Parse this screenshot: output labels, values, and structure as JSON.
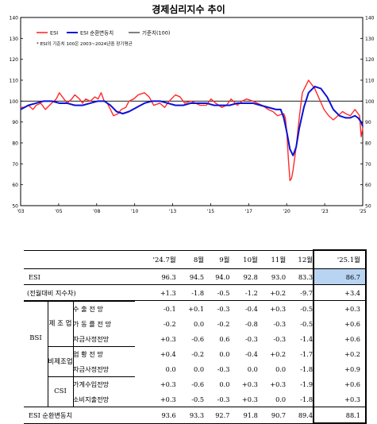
{
  "chart_data": {
    "type": "line",
    "title": "경제심리지수 추이",
    "note": "* ESI의 기준치 100은 2003~2024년중 장기평균",
    "ylim": [
      50,
      140
    ],
    "yticks": [
      "50",
      "60",
      "70",
      "80",
      "90",
      "100",
      "110",
      "120",
      "130",
      "140"
    ],
    "xticks": [
      "'03",
      "'05",
      "'08",
      "'10",
      "'13",
      "'15",
      "'17",
      "'20",
      "'23",
      "'25"
    ],
    "xticks_shown": [
      "'03",
      "'05",
      "'08",
      "'10",
      "'13",
      "'15",
      "'17",
      "'20",
      "'23",
      "'25"
    ],
    "xtick_labels": [
      "'03",
      "'05",
      "'08",
      "'10",
      "'13",
      "'15",
      "'17",
      "'20",
      "'23",
      "'25"
    ],
    "xtick_display": [
      "'03",
      "'05",
      "'08",
      "'10",
      "'13",
      "'15",
      "'17",
      "'20",
      "'23",
      "'25"
    ],
    "xrange": [
      2003.0,
      2025.1
    ],
    "baseline": 100,
    "grid": false,
    "legend_position": "top-left",
    "series": [
      {
        "name": "ESI",
        "color": "#ff2a2a",
        "x": [
          2003.0,
          2003.2,
          2003.5,
          2003.8,
          2004.0,
          2004.3,
          2004.6,
          2005.0,
          2005.3,
          2005.5,
          2005.8,
          2006.0,
          2006.3,
          2006.5,
          2006.8,
          2007.0,
          2007.2,
          2007.5,
          2007.8,
          2008.0,
          2008.2,
          2008.4,
          2008.6,
          2008.8,
          2009.0,
          2009.3,
          2009.5,
          2009.8,
          2010.0,
          2010.3,
          2010.6,
          2011.0,
          2011.3,
          2011.6,
          2012.0,
          2012.3,
          2012.6,
          2013.0,
          2013.3,
          2013.6,
          2014.0,
          2014.3,
          2014.6,
          2015.0,
          2015.3,
          2015.6,
          2016.0,
          2016.3,
          2016.6,
          2017.0,
          2017.3,
          2017.6,
          2018.0,
          2018.3,
          2018.6,
          2019.0,
          2019.3,
          2019.6,
          2020.0,
          2020.1,
          2020.2,
          2020.3,
          2020.4,
          2020.5,
          2020.6,
          2020.8,
          2021.0,
          2021.2,
          2021.4,
          2021.6,
          2021.8,
          2022.0,
          2022.3,
          2022.6,
          2022.9,
          2023.2,
          2023.5,
          2023.8,
          2024.0,
          2024.3,
          2024.6,
          2024.8,
          2024.9,
          2025.0,
          2025.1
        ],
        "values": [
          97,
          97,
          98,
          96,
          98,
          99,
          96,
          99,
          101,
          104,
          101,
          99,
          101,
          103,
          101,
          99,
          101,
          100,
          102,
          101,
          104,
          100,
          99,
          96,
          93,
          94,
          96,
          97,
          100,
          101,
          103,
          104,
          102,
          98,
          99,
          97,
          100,
          103,
          102,
          99,
          100,
          99,
          98,
          98,
          101,
          99,
          97,
          98,
          101,
          98,
          100,
          101,
          100,
          99,
          98,
          96,
          95,
          93,
          94,
          92,
          85,
          72,
          62,
          63,
          67,
          78,
          92,
          104,
          107,
          110,
          108,
          106,
          101,
          96,
          93,
          91,
          93,
          95,
          94,
          93,
          96,
          94,
          93,
          83,
          87
        ]
      },
      {
        "name": "ESI 순환변동치",
        "color": "#0a12d6",
        "x": [
          2003.0,
          2003.5,
          2004.0,
          2004.5,
          2005.0,
          2005.5,
          2006.0,
          2006.5,
          2007.0,
          2007.5,
          2008.0,
          2008.4,
          2008.8,
          2009.2,
          2009.6,
          2010.0,
          2010.5,
          2011.0,
          2011.5,
          2012.0,
          2012.5,
          2013.0,
          2013.5,
          2014.0,
          2014.5,
          2015.0,
          2015.5,
          2016.0,
          2016.5,
          2017.0,
          2017.5,
          2018.0,
          2018.5,
          2019.0,
          2019.5,
          2019.8,
          2020.0,
          2020.2,
          2020.4,
          2020.6,
          2020.8,
          2021.0,
          2021.3,
          2021.6,
          2022.0,
          2022.4,
          2022.8,
          2023.2,
          2023.6,
          2024.0,
          2024.3,
          2024.6,
          2024.8,
          2025.0,
          2025.1
        ],
        "values": [
          96,
          98,
          99,
          100,
          100,
          99,
          99,
          98,
          98,
          99,
          100,
          100,
          98,
          95,
          94,
          95,
          97,
          99,
          100,
          100,
          99,
          98,
          98,
          99,
          99,
          99,
          98,
          98,
          98,
          99,
          99,
          99,
          98,
          97,
          96,
          96,
          92,
          85,
          77,
          74,
          78,
          87,
          97,
          104,
          107,
          106,
          102,
          96,
          93,
          92,
          92,
          93,
          92,
          90,
          88
        ]
      },
      {
        "name": "기준치(100)",
        "color": "#000000",
        "x": [
          2003.0,
          2025.1
        ],
        "values": [
          100,
          100
        ]
      }
    ]
  },
  "table": {
    "columns": [
      "'24.7월",
      "8월",
      "9월",
      "10월",
      "11월",
      "12월",
      "'25.1월"
    ],
    "esi_label": "ESI",
    "esi": [
      "96.3",
      "94.5",
      "94.0",
      "92.8",
      "93.0",
      "83.3",
      "86.7"
    ],
    "mom_label": "(전월대비 지수차)",
    "mom": [
      "+1.3",
      "-1.8",
      "-0.5",
      "-1.2",
      "+0.2",
      "-9.7",
      "+3.4"
    ],
    "bsi_label": "BSI",
    "mfg_label": "제 조 업",
    "nonmfg_label": "비제조업",
    "csi_label": "CSI",
    "rows": [
      {
        "label": "수 출 전 망",
        "values": [
          "-0.1",
          "+0.1",
          "-0.3",
          "-0.4",
          "+0.3",
          "-0.5",
          "+0.3"
        ]
      },
      {
        "label": "가 동 률 전 망",
        "values": [
          "-0.2",
          "0.0",
          "-0.2",
          "-0.8",
          "-0.3",
          "-0.5",
          "+0.6"
        ]
      },
      {
        "label": "자금사정전망",
        "values": [
          "+0.3",
          "-0.6",
          "0.6",
          "-0.3",
          "-0.3",
          "-1.4",
          "+0.6"
        ]
      },
      {
        "label": "업 황 전 망",
        "values": [
          "+0.4",
          "-0.2",
          "0.0",
          "-0.4",
          "+0.2",
          "-1.7",
          "+0.2"
        ]
      },
      {
        "label": "자금사정전망",
        "values": [
          "0.0",
          "0.0",
          "-0.3",
          "0.0",
          "0.0",
          "-1.8",
          "+0.9"
        ]
      },
      {
        "label": "가계수입전망",
        "values": [
          "+0.3",
          "-0.6",
          "0.0",
          "+0.3",
          "+0.3",
          "-1.9",
          "+0.6"
        ]
      },
      {
        "label": "소비지출전망",
        "values": [
          "+0.3",
          "-0.5",
          "-0.3",
          "+0.3",
          "0.0",
          "-1.8",
          "+0.3"
        ]
      }
    ],
    "cyc_label": "ESI 순환변동치",
    "cyc": [
      "93.6",
      "93.3",
      "92.7",
      "91.8",
      "90.7",
      "89.4",
      "88.1"
    ]
  }
}
